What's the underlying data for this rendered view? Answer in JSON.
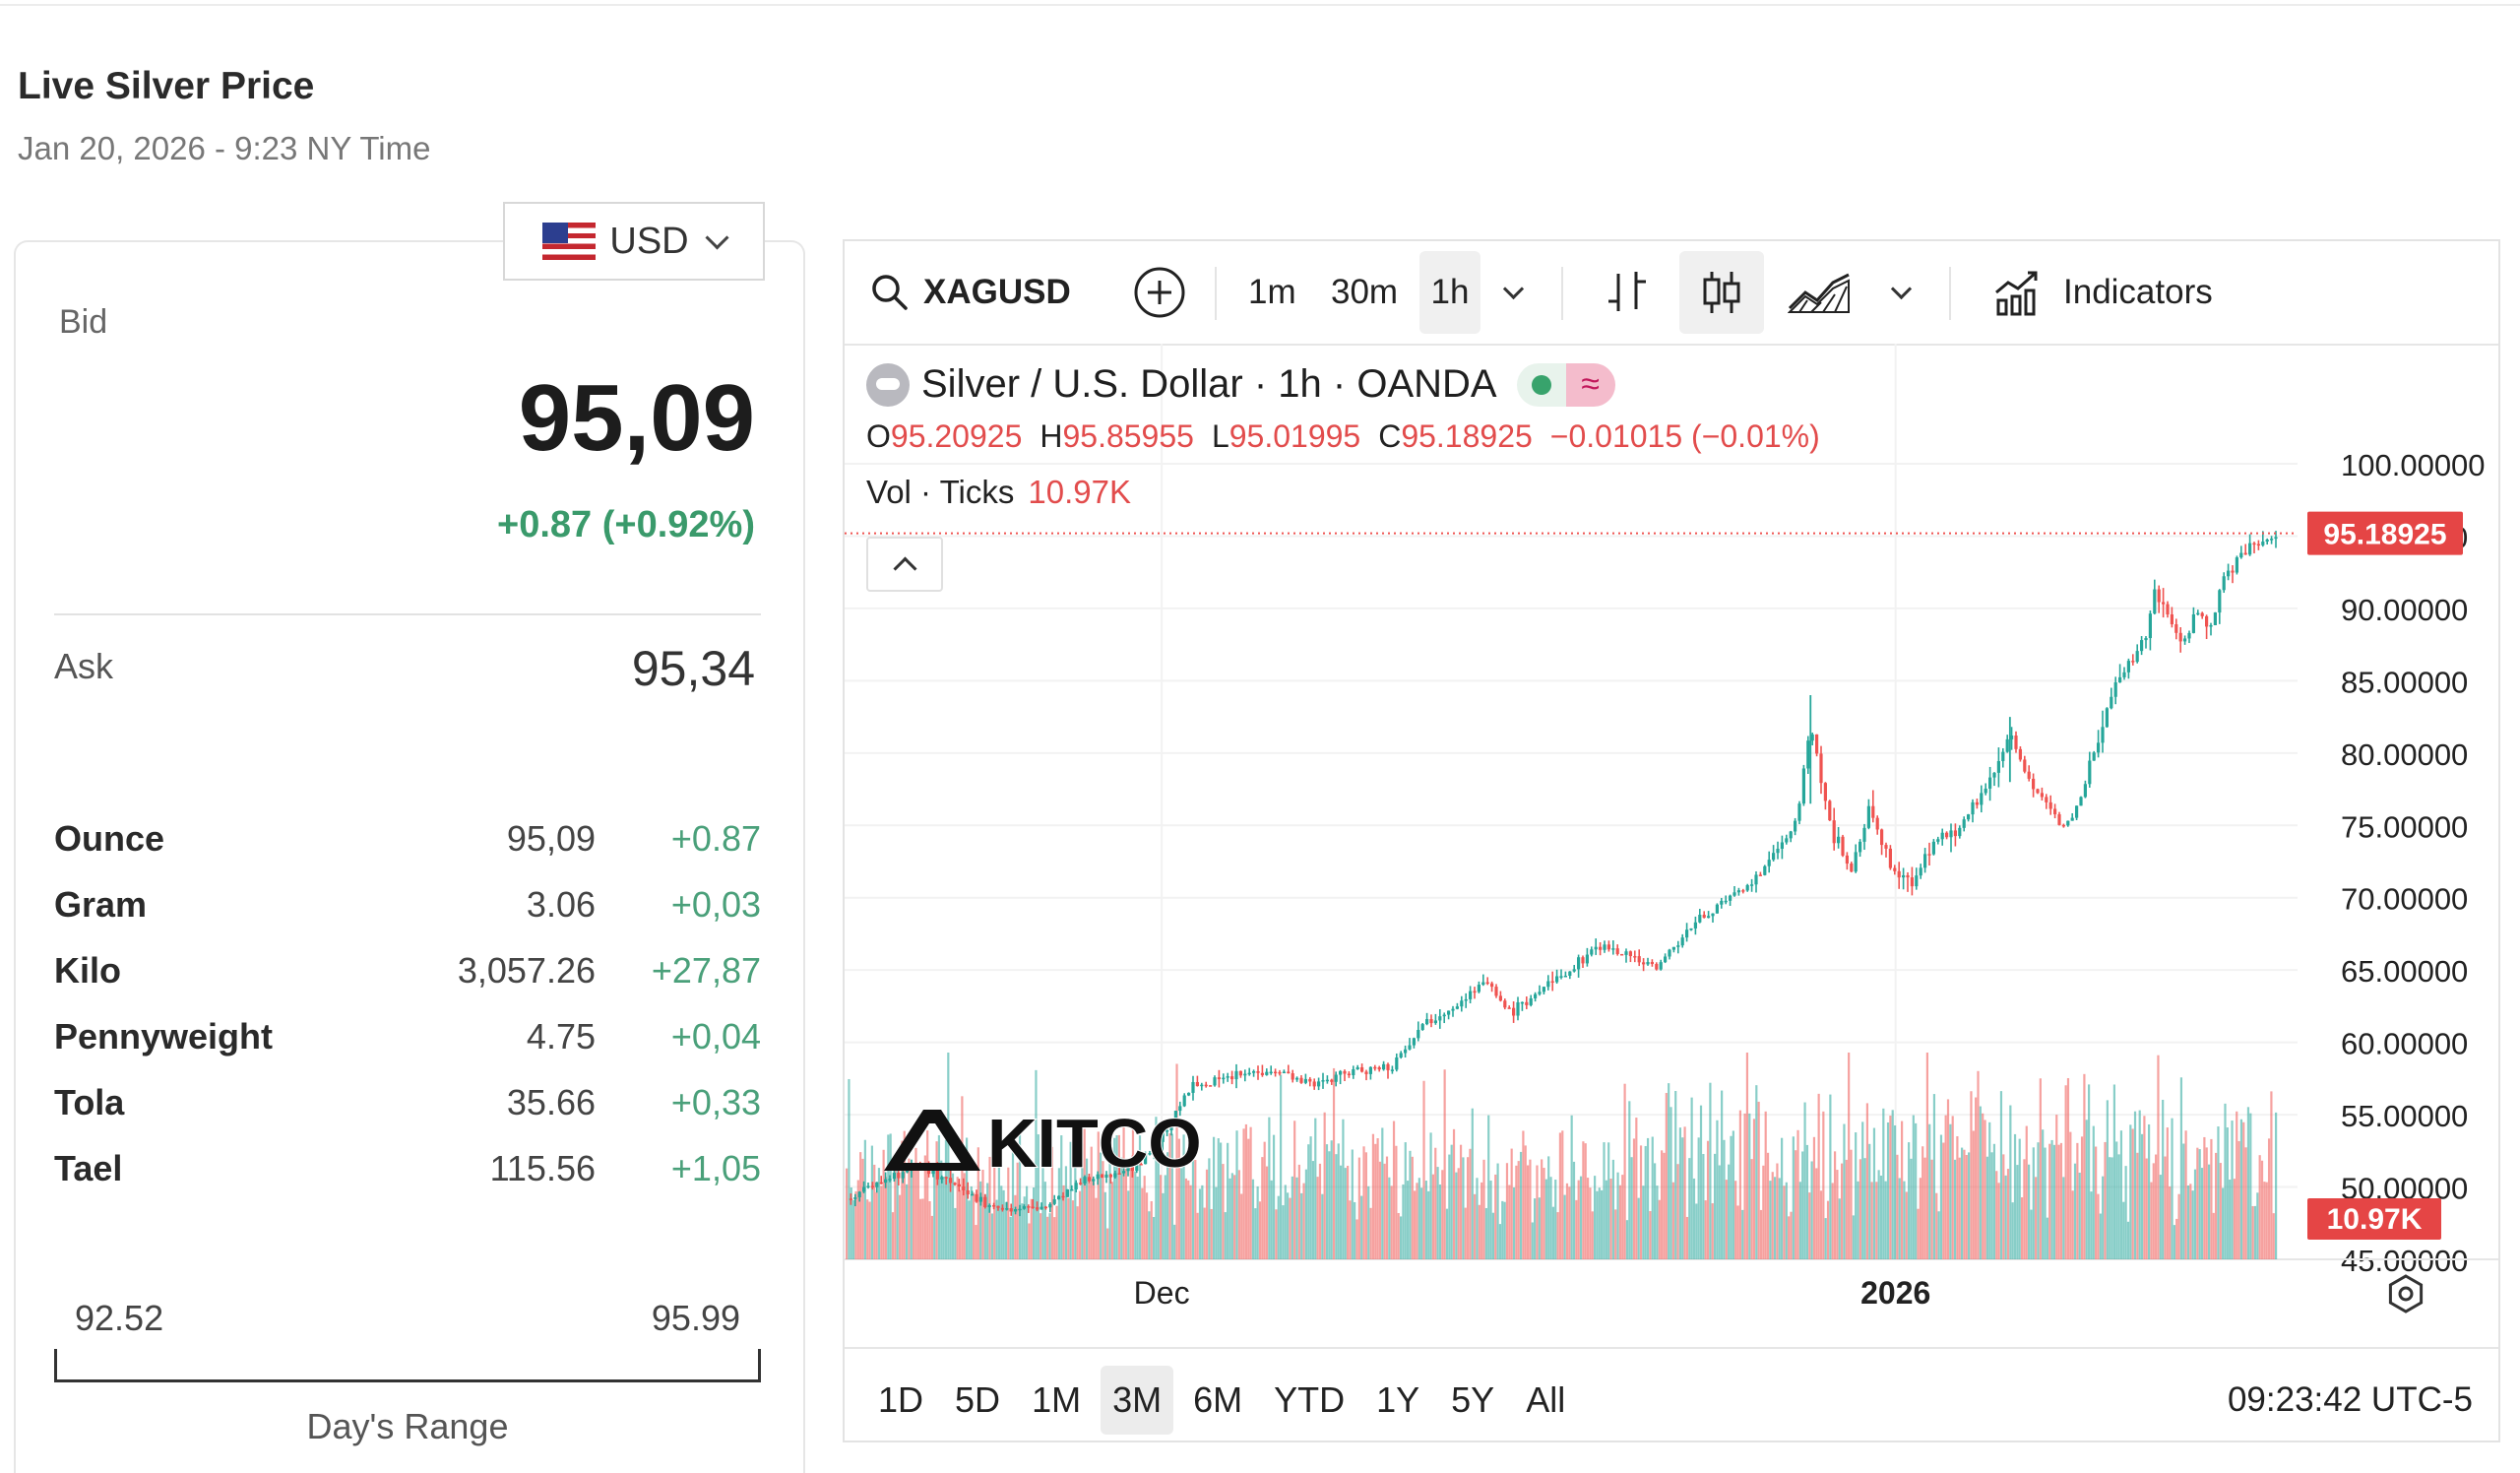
{
  "page": {
    "title": "Live Silver Price",
    "subtitle": "Jan 20, 2026 - 9:23 NY Time"
  },
  "currency": {
    "selected": "USD",
    "flag_icon": "us-flag-icon"
  },
  "quote": {
    "bid_label": "Bid",
    "bid_value": "95,09",
    "bid_change": "+0.87 (+0.92%)",
    "ask_label": "Ask",
    "ask_value": "95,34"
  },
  "units": [
    {
      "unit": "Ounce",
      "price": "95,09",
      "change": "+0.87"
    },
    {
      "unit": "Gram",
      "price": "3.06",
      "change": "+0,03"
    },
    {
      "unit": "Kilo",
      "price": "3,057.26",
      "change": "+27,87"
    },
    {
      "unit": "Pennyweight",
      "price": "4.75",
      "change": "+0,04"
    },
    {
      "unit": "Tola",
      "price": "35.66",
      "change": "+0,33"
    },
    {
      "unit": "Tael",
      "price": "115.56",
      "change": "+1,05"
    }
  ],
  "day_range": {
    "low": "92.52",
    "high": "95.99",
    "label": "Day's Range"
  },
  "toolbar": {
    "symbol": "XAGUSD",
    "intervals": [
      "1m",
      "30m",
      "1h"
    ],
    "active_interval": "1h",
    "indicators_label": "Indicators"
  },
  "legend": {
    "name": "Silver / U.S. Dollar · 1h · OANDA",
    "ohlc": [
      {
        "k": "O",
        "v": "95.20925"
      },
      {
        "k": "H",
        "v": "95.85955"
      },
      {
        "k": "L",
        "v": "95.01995"
      },
      {
        "k": "C",
        "v": "95.18925"
      },
      {
        "k": "",
        "v": "−0.01015 (−0.01%)"
      }
    ],
    "vol_label": "Vol · Ticks",
    "vol_value": "10.97K"
  },
  "ranges": [
    "1D",
    "5D",
    "1M",
    "3M",
    "6M",
    "YTD",
    "1Y",
    "5Y",
    "All"
  ],
  "active_range": "3M",
  "clock": "09:23:42 UTC-5",
  "watermark": "KITCO",
  "colors": {
    "up": "#26a69a",
    "down": "#ef5350",
    "positive_text": "#4aa07a"
  },
  "chart_data": {
    "type": "candlestick",
    "symbol": "XAGUSD",
    "interval": "1h",
    "ylim": [
      45,
      100
    ],
    "y_ticks": [
      "100.00000",
      "95.00000",
      "90.00000",
      "85.00000",
      "80.00000",
      "75.00000",
      "70.00000",
      "65.00000",
      "60.00000",
      "55.00000",
      "50.00000",
      "45.00000"
    ],
    "x_ticks": [
      "Dec",
      "2026"
    ],
    "last_price": "95.18925",
    "last_volume": "10.97K",
    "price_path": [
      {
        "t": 0.0,
        "p": 49.2
      },
      {
        "t": 0.03,
        "p": 50.6
      },
      {
        "t": 0.055,
        "p": 51.5
      },
      {
        "t": 0.09,
        "p": 49.5
      },
      {
        "t": 0.12,
        "p": 48.4
      },
      {
        "t": 0.15,
        "p": 48.6
      },
      {
        "t": 0.175,
        "p": 50.2
      },
      {
        "t": 0.2,
        "p": 51.0
      },
      {
        "t": 0.22,
        "p": 51.6
      },
      {
        "t": 0.235,
        "p": 53.2
      },
      {
        "t": 0.26,
        "p": 57.0
      },
      {
        "t": 0.29,
        "p": 57.6
      },
      {
        "t": 0.32,
        "p": 58.2
      },
      {
        "t": 0.35,
        "p": 57.0
      },
      {
        "t": 0.38,
        "p": 58.0
      },
      {
        "t": 0.41,
        "p": 58.4
      },
      {
        "t": 0.43,
        "p": 61.0
      },
      {
        "t": 0.455,
        "p": 62.5
      },
      {
        "t": 0.48,
        "p": 64.2
      },
      {
        "t": 0.5,
        "p": 62.0
      },
      {
        "t": 0.52,
        "p": 63.5
      },
      {
        "t": 0.545,
        "p": 65.0
      },
      {
        "t": 0.565,
        "p": 66.8
      },
      {
        "t": 0.59,
        "p": 66.0
      },
      {
        "t": 0.61,
        "p": 65.2
      },
      {
        "t": 0.63,
        "p": 67.5
      },
      {
        "t": 0.655,
        "p": 69.5
      },
      {
        "t": 0.675,
        "p": 70.5
      },
      {
        "t": 0.695,
        "p": 72.5
      },
      {
        "t": 0.715,
        "p": 75.5
      },
      {
        "t": 0.725,
        "p": 82.0
      },
      {
        "t": 0.74,
        "p": 75.0
      },
      {
        "t": 0.755,
        "p": 71.5
      },
      {
        "t": 0.77,
        "p": 76.5
      },
      {
        "t": 0.785,
        "p": 72.0
      },
      {
        "t": 0.8,
        "p": 71.0
      },
      {
        "t": 0.815,
        "p": 73.5
      },
      {
        "t": 0.83,
        "p": 74.5
      },
      {
        "t": 0.845,
        "p": 76.0
      },
      {
        "t": 0.86,
        "p": 78.0
      },
      {
        "t": 0.875,
        "p": 81.5
      },
      {
        "t": 0.89,
        "p": 78.0
      },
      {
        "t": 0.905,
        "p": 76.0
      },
      {
        "t": 0.915,
        "p": 74.8
      },
      {
        "t": 0.93,
        "p": 77.5
      },
      {
        "t": 0.945,
        "p": 82.5
      },
      {
        "t": 0.96,
        "p": 86.0
      },
      {
        "t": 0.975,
        "p": 87.5
      },
      {
        "t": 0.985,
        "p": 91.5
      },
      {
        "t": 0.995,
        "p": 89.0
      },
      {
        "t": 1.005,
        "p": 87.5
      },
      {
        "t": 1.015,
        "p": 90.0
      },
      {
        "t": 1.025,
        "p": 88.0
      },
      {
        "t": 1.035,
        "p": 92.0
      },
      {
        "t": 1.045,
        "p": 93.5
      },
      {
        "t": 1.06,
        "p": 94.2
      },
      {
        "t": 1.075,
        "p": 95.19
      }
    ]
  }
}
